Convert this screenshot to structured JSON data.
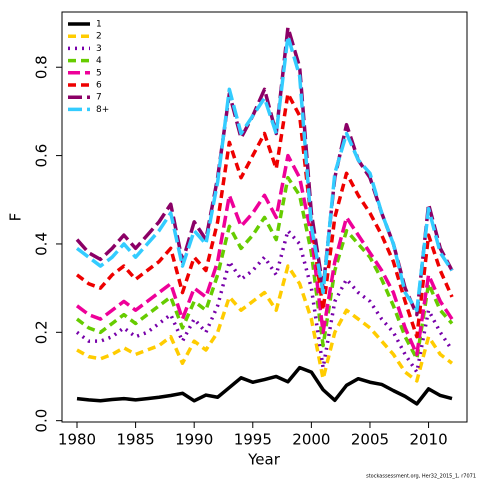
{
  "chart_data": {
    "type": "line",
    "x_label": "Year",
    "y_label": "F",
    "footnote": "stockassessment.org, Her32_2015_1, r7071",
    "x": [
      1980,
      1981,
      1982,
      1983,
      1984,
      1985,
      1986,
      1987,
      1988,
      1989,
      1990,
      1991,
      1992,
      1993,
      1994,
      1995,
      1996,
      1997,
      1998,
      1999,
      2000,
      2001,
      2002,
      2003,
      2004,
      2005,
      2006,
      2007,
      2008,
      2009,
      2010,
      2011,
      2012
    ],
    "xlim": [
      1978.72,
      2013.28
    ],
    "xticks": [
      1980,
      1985,
      1990,
      1995,
      2000,
      2005,
      2010
    ],
    "ylim": [
      -0.003,
      0.925
    ],
    "yticks": [
      {
        "value": 0,
        "label": "0.0"
      },
      0.2,
      0.4,
      0.6,
      0.8
    ],
    "legend": "top-left",
    "series": [
      {
        "name": "1",
        "color": "#000000",
        "values": [
          0.05,
          0.047,
          0.045,
          0.048,
          0.05,
          0.047,
          0.05,
          0.053,
          0.057,
          0.062,
          0.045,
          0.058,
          0.053,
          0.075,
          0.097,
          0.087,
          0.093,
          0.1,
          0.088,
          0.12,
          0.11,
          0.07,
          0.046,
          0.08,
          0.095,
          0.087,
          0.082,
          0.068,
          0.055,
          0.038,
          0.072,
          0.057,
          0.05
        ]
      },
      {
        "name": "2",
        "color": "#ffcc00",
        "values": [
          0.16,
          0.145,
          0.14,
          0.15,
          0.165,
          0.15,
          0.16,
          0.17,
          0.19,
          0.13,
          0.18,
          0.16,
          0.2,
          0.28,
          0.25,
          0.27,
          0.29,
          0.25,
          0.35,
          0.31,
          0.23,
          0.095,
          0.2,
          0.25,
          0.23,
          0.21,
          0.18,
          0.15,
          0.11,
          0.09,
          0.19,
          0.15,
          0.13
        ]
      },
      {
        "name": "3",
        "color": "#7700aa",
        "values": [
          0.2,
          0.18,
          0.18,
          0.19,
          0.21,
          0.19,
          0.2,
          0.22,
          0.24,
          0.18,
          0.23,
          0.2,
          0.26,
          0.36,
          0.32,
          0.34,
          0.37,
          0.33,
          0.43,
          0.4,
          0.3,
          0.12,
          0.27,
          0.32,
          0.29,
          0.27,
          0.23,
          0.2,
          0.15,
          0.11,
          0.25,
          0.2,
          0.16
        ]
      },
      {
        "name": "4",
        "color": "#66cc00",
        "values": [
          0.23,
          0.21,
          0.2,
          0.22,
          0.24,
          0.22,
          0.24,
          0.26,
          0.28,
          0.21,
          0.27,
          0.25,
          0.33,
          0.44,
          0.39,
          0.42,
          0.46,
          0.41,
          0.55,
          0.51,
          0.38,
          0.17,
          0.34,
          0.43,
          0.4,
          0.37,
          0.32,
          0.26,
          0.19,
          0.14,
          0.31,
          0.25,
          0.22
        ]
      },
      {
        "name": "5",
        "color": "#ee0099",
        "values": [
          0.26,
          0.24,
          0.23,
          0.25,
          0.27,
          0.25,
          0.27,
          0.29,
          0.31,
          0.23,
          0.3,
          0.28,
          0.36,
          0.51,
          0.44,
          0.47,
          0.51,
          0.46,
          0.6,
          0.55,
          0.42,
          0.2,
          0.36,
          0.46,
          0.42,
          0.38,
          0.34,
          0.29,
          0.21,
          0.15,
          0.33,
          0.27,
          0.23
        ]
      },
      {
        "name": "6",
        "color": "#ee0000",
        "values": [
          0.33,
          0.31,
          0.3,
          0.33,
          0.35,
          0.32,
          0.34,
          0.36,
          0.39,
          0.29,
          0.37,
          0.34,
          0.45,
          0.63,
          0.55,
          0.6,
          0.65,
          0.57,
          0.74,
          0.69,
          0.45,
          0.25,
          0.46,
          0.56,
          0.51,
          0.47,
          0.42,
          0.36,
          0.27,
          0.19,
          0.42,
          0.34,
          0.28
        ]
      },
      {
        "name": "7",
        "color": "#8b0066",
        "values": [
          0.41,
          0.38,
          0.365,
          0.39,
          0.42,
          0.39,
          0.42,
          0.45,
          0.49,
          0.36,
          0.45,
          0.41,
          0.55,
          0.74,
          0.64,
          0.69,
          0.75,
          0.65,
          0.89,
          0.8,
          0.47,
          0.3,
          0.55,
          0.67,
          0.59,
          0.55,
          0.47,
          0.4,
          0.3,
          0.24,
          0.49,
          0.39,
          0.34
        ]
      },
      {
        "name": "8+",
        "color": "#33ccff",
        "values": [
          0.39,
          0.37,
          0.35,
          0.37,
          0.4,
          0.37,
          0.4,
          0.43,
          0.47,
          0.35,
          0.43,
          0.4,
          0.54,
          0.75,
          0.65,
          0.69,
          0.73,
          0.65,
          0.87,
          0.78,
          0.44,
          0.29,
          0.56,
          0.65,
          0.59,
          0.56,
          0.47,
          0.4,
          0.29,
          0.25,
          0.48,
          0.38,
          0.34
        ]
      }
    ]
  }
}
